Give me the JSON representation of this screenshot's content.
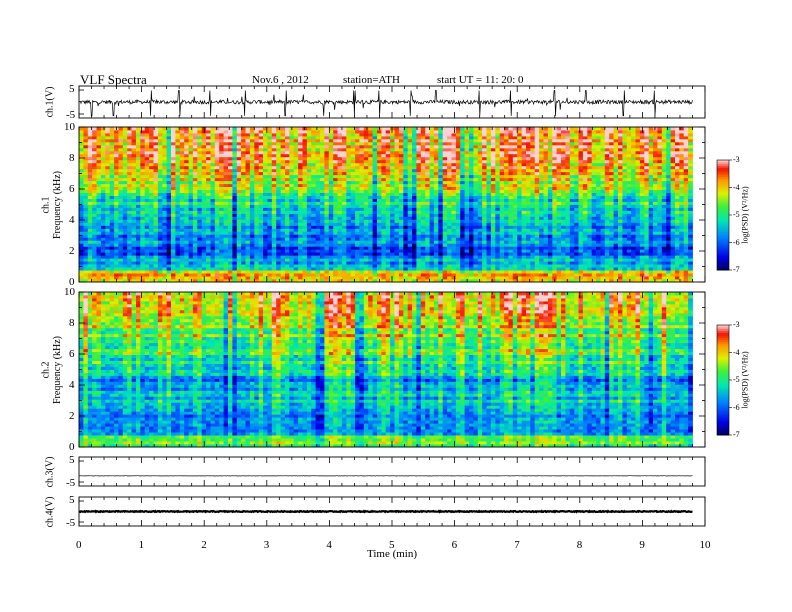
{
  "header": {
    "title": "VLF  Spectra",
    "date": "Nov.6  , 2012",
    "station": "station=ATH",
    "start": "start  UT  =    11: 20: 0"
  },
  "chart_data": [
    {
      "type": "line",
      "panel": "ch1-waveform",
      "ylabel": "ch.1(V)",
      "ylim": [
        -5,
        5
      ],
      "yticks": [
        "5",
        "-5"
      ],
      "x_unit": "min",
      "xlim": [
        0,
        10
      ],
      "data_extent_x": [
        0,
        9.8
      ],
      "mean_y": 0,
      "noise_amplitude": 1.2,
      "spikes_x": [
        0.2,
        0.55,
        1.15,
        1.6,
        2.1,
        2.65,
        3.3,
        3.9,
        4.4,
        4.8,
        5.3,
        5.7,
        6.4,
        6.9,
        7.6,
        8.1,
        8.7,
        9.2
      ]
    },
    {
      "type": "heatmap",
      "panel": "ch1-spectrogram",
      "ylabel": "ch.1\nFrequency  (kHz)",
      "ylim": [
        0,
        10
      ],
      "yticks": [
        "0",
        "2",
        "4",
        "6",
        "8",
        "10"
      ],
      "xlim": [
        0,
        10
      ],
      "data_extent_x": [
        0,
        9.8
      ],
      "colorbar": {
        "label": "log(PSD) (V²/Hz)",
        "range": [
          -7,
          -3
        ],
        "ticks": [
          "-7",
          "-6",
          "-5",
          "-4",
          "-3"
        ]
      },
      "profile": [
        {
          "freq_khz": 0.0,
          "log_psd": -4.6
        },
        {
          "freq_khz": 0.5,
          "log_psd": -4.2
        },
        {
          "freq_khz": 1.0,
          "log_psd": -5.6
        },
        {
          "freq_khz": 2.0,
          "log_psd": -6.2
        },
        {
          "freq_khz": 3.0,
          "log_psd": -5.8
        },
        {
          "freq_khz": 4.0,
          "log_psd": -6.0
        },
        {
          "freq_khz": 5.0,
          "log_psd": -5.4
        },
        {
          "freq_khz": 6.0,
          "log_psd": -5.0
        },
        {
          "freq_khz": 7.0,
          "log_psd": -4.6
        },
        {
          "freq_khz": 8.0,
          "log_psd": -4.3
        },
        {
          "freq_khz": 10.0,
          "log_psd": -4.0
        }
      ],
      "sferics_density": 0.55
    },
    {
      "type": "heatmap",
      "panel": "ch2-spectrogram",
      "ylabel": "ch.2\nFrequency  (kHz)",
      "ylim": [
        0,
        10
      ],
      "yticks": [
        "0",
        "2",
        "4",
        "6",
        "8",
        "10"
      ],
      "xlim": [
        0,
        10
      ],
      "data_extent_x": [
        0,
        9.8
      ],
      "colorbar": {
        "label": "log(PSD) (V²/Hz)",
        "range": [
          -7,
          -3
        ],
        "ticks": [
          "-7",
          "-6",
          "-5",
          "-4",
          "-3"
        ]
      },
      "profile": [
        {
          "freq_khz": 0.0,
          "log_psd": -4.8
        },
        {
          "freq_khz": 0.5,
          "log_psd": -4.6
        },
        {
          "freq_khz": 1.0,
          "log_psd": -5.7
        },
        {
          "freq_khz": 2.0,
          "log_psd": -5.9
        },
        {
          "freq_khz": 3.0,
          "log_psd": -5.6
        },
        {
          "freq_khz": 4.0,
          "log_psd": -5.9
        },
        {
          "freq_khz": 5.0,
          "log_psd": -5.5
        },
        {
          "freq_khz": 6.0,
          "log_psd": -5.1
        },
        {
          "freq_khz": 7.0,
          "log_psd": -4.8
        },
        {
          "freq_khz": 8.0,
          "log_psd": -4.6
        },
        {
          "freq_khz": 10.0,
          "log_psd": -4.4
        }
      ],
      "sferics_density": 0.45
    },
    {
      "type": "line",
      "panel": "ch3-waveform",
      "ylabel": "ch.3(V)",
      "ylim": [
        -5,
        5
      ],
      "yticks": [
        "5",
        "-5"
      ],
      "xlim": [
        0,
        10
      ],
      "data_extent_x": [
        0,
        9.8
      ],
      "mean_y": -1.5,
      "noise_amplitude": 0.1
    },
    {
      "type": "line",
      "panel": "ch4-waveform",
      "ylabel": "ch.4(V)",
      "ylim": [
        -5,
        5
      ],
      "yticks": [
        "5",
        "-5"
      ],
      "xlim": [
        0,
        10
      ],
      "data_extent_x": [
        0,
        9.8
      ],
      "mean_y": 0,
      "noise_amplitude": 0.3,
      "xlabel": "Time  (min)",
      "xticks": [
        "0",
        "1",
        "2",
        "3",
        "4",
        "5",
        "6",
        "7",
        "8",
        "9",
        "10"
      ]
    }
  ]
}
